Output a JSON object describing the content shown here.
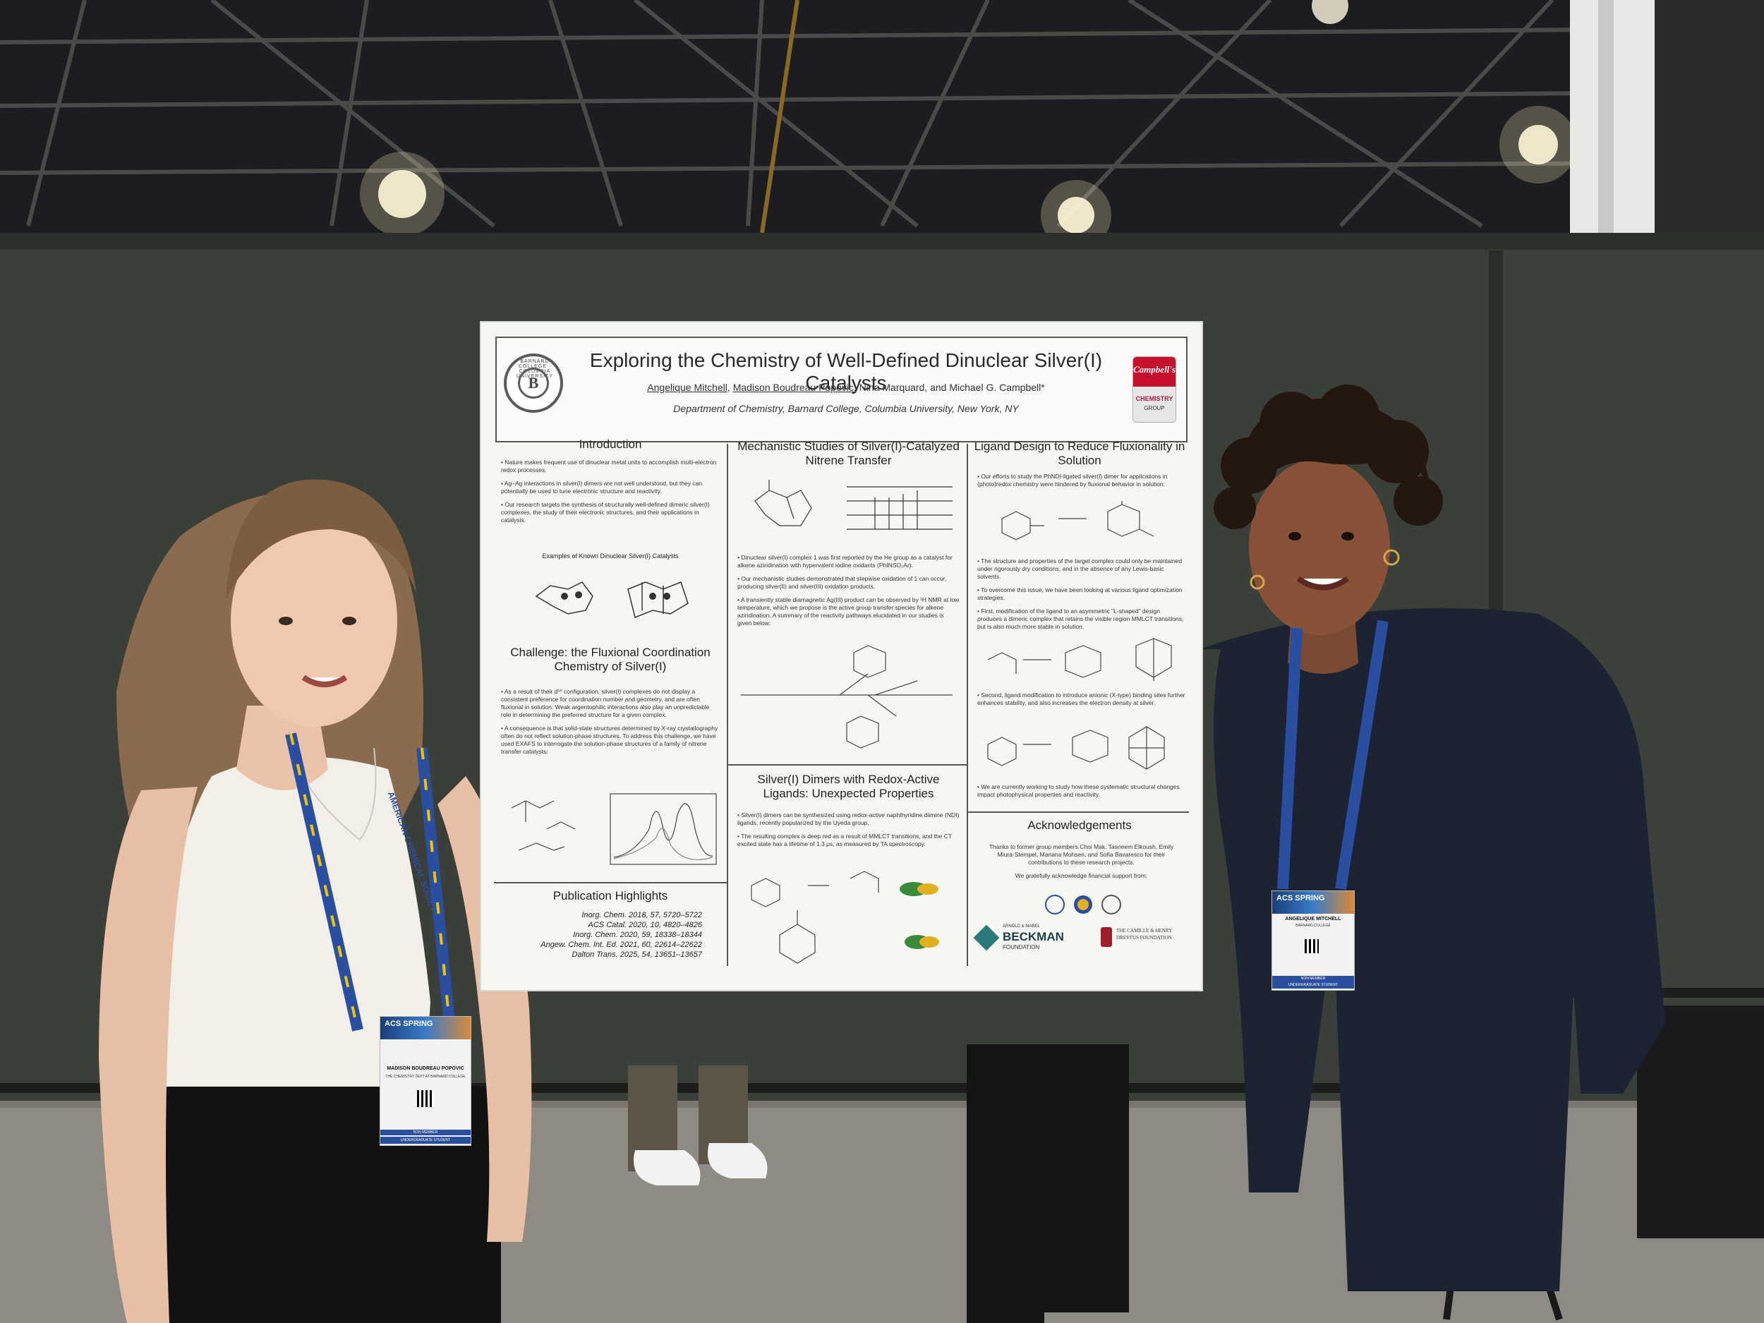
{
  "poster": {
    "title": "Exploring the Chemistry of Well-Defined Dinuclear Silver(I) Catalysts",
    "authors": {
      "a1": "Angelique Mitchell",
      "sep1": ", ",
      "a2": "Madison Boudreau Popovic",
      "rest": ", Nina Marquard, and Michael G. Campbell*"
    },
    "department": "Department of Chemistry, Barnard College, Columbia University, New York, NY",
    "logo_left": {
      "letter": "B",
      "text": "BARNARD COLLEGE · COLUMBIA UNIVERSITY"
    },
    "logo_right": {
      "brand": "Campbell's",
      "line2": "CHEMISTRY",
      "line3": "GROUP"
    },
    "intro": {
      "title": "Introduction",
      "bullets": [
        "• Nature makes frequent use of dinuclear metal units to accomplish multi-electron redox processes.",
        "• Ag–Ag interactions in silver(I) dimers are not well understood, but they can potentially be used to tune electronic structure and reactivity.",
        "• Our research targets the synthesis of structurally well-defined dimeric silver(I) complexes, the study of their electronic structures, and their applications in catalysis."
      ],
      "caption": "Examples of Known Dinuclear Silver(I) Catalysts"
    },
    "challenge": {
      "title": "Challenge: the Fluxional Coordination Chemistry of Silver(I)",
      "bullets": [
        "• As a result of their d¹⁰ configuration, silver(I) complexes do not display a consistent preference for coordination number and geometry, and are often fluxional in solution. Weak argentophilic interactions also play an unpredictable role in determining the preferred structure for a given complex.",
        "• A consequence is that solid-state structures determined by X-ray crystallography often do not reflect solution-phase structures. To address this challenge, we have used EXAFS to interrogate the solution-phase structures of a family of nitrene transfer catalysts:"
      ]
    },
    "publications": {
      "title": "Publication Highlights",
      "items": [
        "Inorg. Chem. 2018, 57, 5720–5722",
        "ACS Catal. 2020, 10, 4820–4826",
        "Inorg. Chem. 2020, 59, 18338–18344",
        "Angew. Chem. Int. Ed. 2021, 60, 22614–22622",
        "Dalton Trans. 2025, 54, 13651–13657"
      ]
    },
    "mechanistic": {
      "title": "Mechanistic Studies of Silver(I)-Catalyzed Nitrene Transfer",
      "bullets": [
        "• Dinuclear silver(I) complex 1 was first reported by the He group as a catalyst for alkene aziridination with hypervalent iodine oxidants (PhINSO₂Ar).",
        "• Our mechanistic studies demonstrated that stepwise oxidation of 1 can occur, producing silver(II) and silver(III) oxidation products.",
        "• A transiently stable diamagnetic Ag(III) product can be observed by ¹H NMR at low temperature, which we propose is the active group transfer species for alkene aziridination. A summary of the reactivity pathways elucidated in our studies is given below:"
      ]
    },
    "redox": {
      "title": "Silver(I) Dimers with Redox-Active Ligands: Unexpected Properties",
      "bullets": [
        "• Silver(I) dimers can be synthesized using redox-active naphthyridine diimine (NDI) ligands, recently popularized by the Uyeda group.",
        "• The resulting complex is deep red as a result of MMLCT transitions, and the CT excited state has a lifetime of 1.3 μs, as measured by TA spectroscopy."
      ]
    },
    "ligand": {
      "title": "Ligand Design to Reduce Fluxionality in Solution",
      "bullets": [
        "• Our efforts to study the PhNDI-ligated silver(I) dimer for applications in (photo)redox chemistry were hindered by fluxional behavior in solution:",
        "• The structure and properties of the target complex could only be maintained under rigorously dry conditions, and in the absence of any Lewis-basic solvents.",
        "• To overcome this issue, we have been looking at various ligand optimization strategies.",
        "• First, modification of the ligand to an asymmetric \"L-shaped\" design produces a dimeric complex that retains the visible region MMLCT transitions, but is also much more stable in solution.",
        "• Second, ligand modification to introduce anionic (X-type) binding sites further enhances stability, and also increases the electron density at silver.",
        "• We are currently working to study how these systematic structural changes impact photophysical properties and reactivity."
      ]
    },
    "acknowledgements": {
      "title": "Acknowledgements",
      "text": "Thanks to former group members Choi Mak, Tasneem Elkoush, Emily Miura-Stempel, Mariana Mohsen, and Sofia Bavaresco for their contributions to these research projects.",
      "support": "We gratefully acknowledge financial support from:",
      "beckman": "BECKMAN",
      "beckman_small": "ARNOLD & MABEL",
      "beckman_foundation": "FOUNDATION",
      "dreyfus": "THE CAMILLE & HENRY DREYFUS FOUNDATION"
    }
  },
  "badges": {
    "left": {
      "conf": "ACS SPRING",
      "name": "MADISON BOUDREAU POPOVIC",
      "org": "THE CHEMISTRY DEPT AT BARNARD COLLEGE",
      "member": "NON MEMBER",
      "type": "UNDERGRADUATE STUDENT"
    },
    "right": {
      "conf": "ACS SPRING",
      "name": "ANGELIQUE MITCHELL",
      "org": "BARNARD COLLEGE",
      "member": "NON MEMBER",
      "type": "UNDERGRADUATE STUDENT"
    }
  },
  "lanyard_text": "AMERICAN CHEMICAL SOCIETY"
}
